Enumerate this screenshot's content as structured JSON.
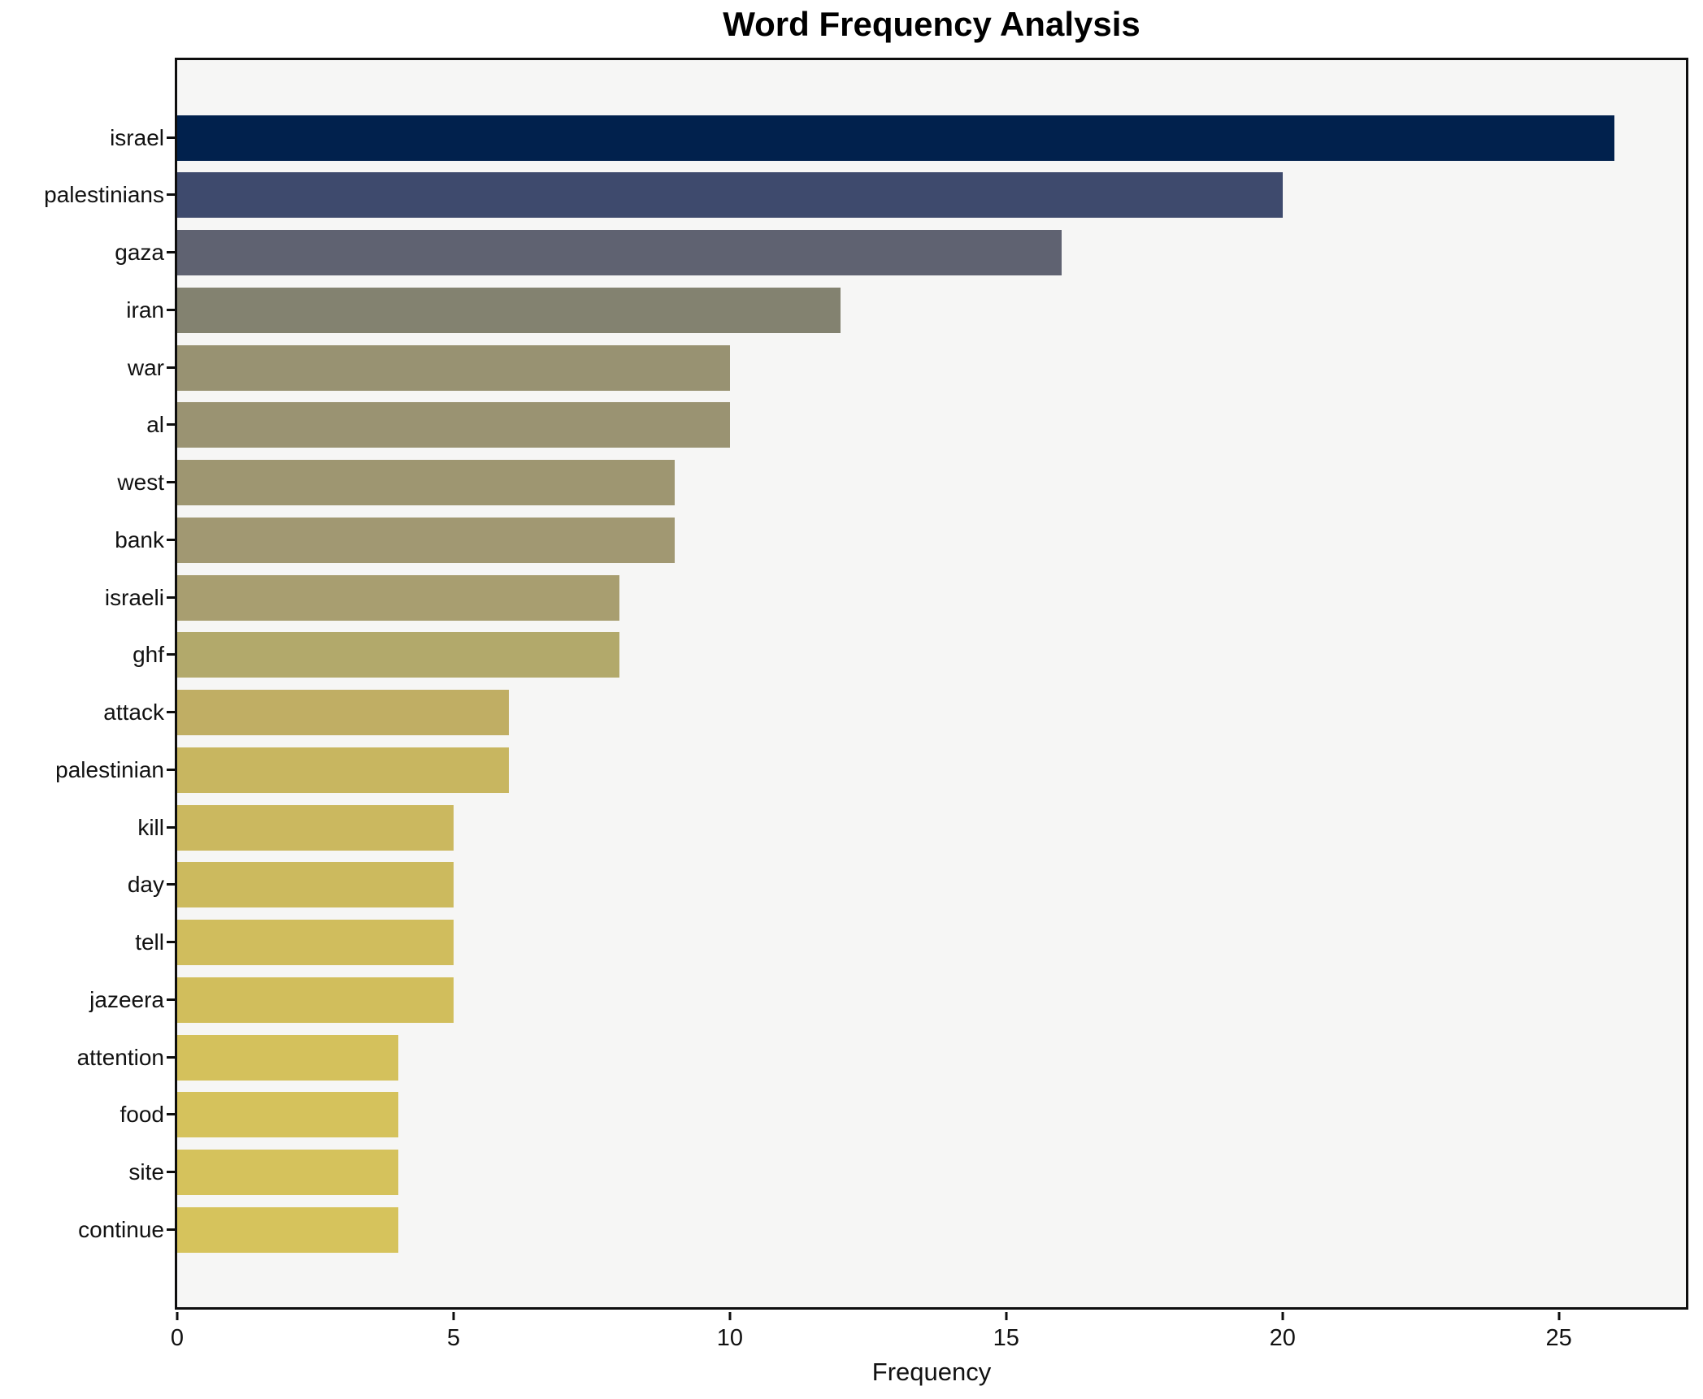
{
  "chart_data": {
    "type": "bar",
    "orientation": "horizontal",
    "title": "Word Frequency Analysis",
    "xlabel": "Frequency",
    "ylabel": "",
    "categories": [
      "israel",
      "palestinians",
      "gaza",
      "iran",
      "war",
      "al",
      "west",
      "bank",
      "israeli",
      "ghf",
      "attack",
      "palestinian",
      "kill",
      "day",
      "tell",
      "jazeera",
      "attention",
      "food",
      "site",
      "continue"
    ],
    "values": [
      26,
      20,
      16,
      12,
      10,
      10,
      9,
      9,
      8,
      8,
      6,
      6,
      5,
      5,
      5,
      5,
      4,
      4,
      4,
      4
    ],
    "bar_colors": [
      "#01214d",
      "#3e4a6d",
      "#5f6271",
      "#838270",
      "#989272",
      "#9a9372",
      "#9e9671",
      "#a19872",
      "#a89e70",
      "#b2a96b",
      "#c0ae64",
      "#c8b660",
      "#cbb85f",
      "#ccba5e",
      "#d0bd5d",
      "#d1be5c",
      "#d4c15c",
      "#d5c25c",
      "#d5c25c",
      "#d6c35c"
    ],
    "x_ticks": [
      0,
      5,
      10,
      15,
      20,
      25
    ],
    "xlim": [
      0,
      27.3
    ],
    "grid": false,
    "legend": "none",
    "plot_background": "#f6f6f5",
    "figure_background": "#ffffff",
    "spine_color": "#0e0e0e",
    "text_color": "#111111"
  }
}
